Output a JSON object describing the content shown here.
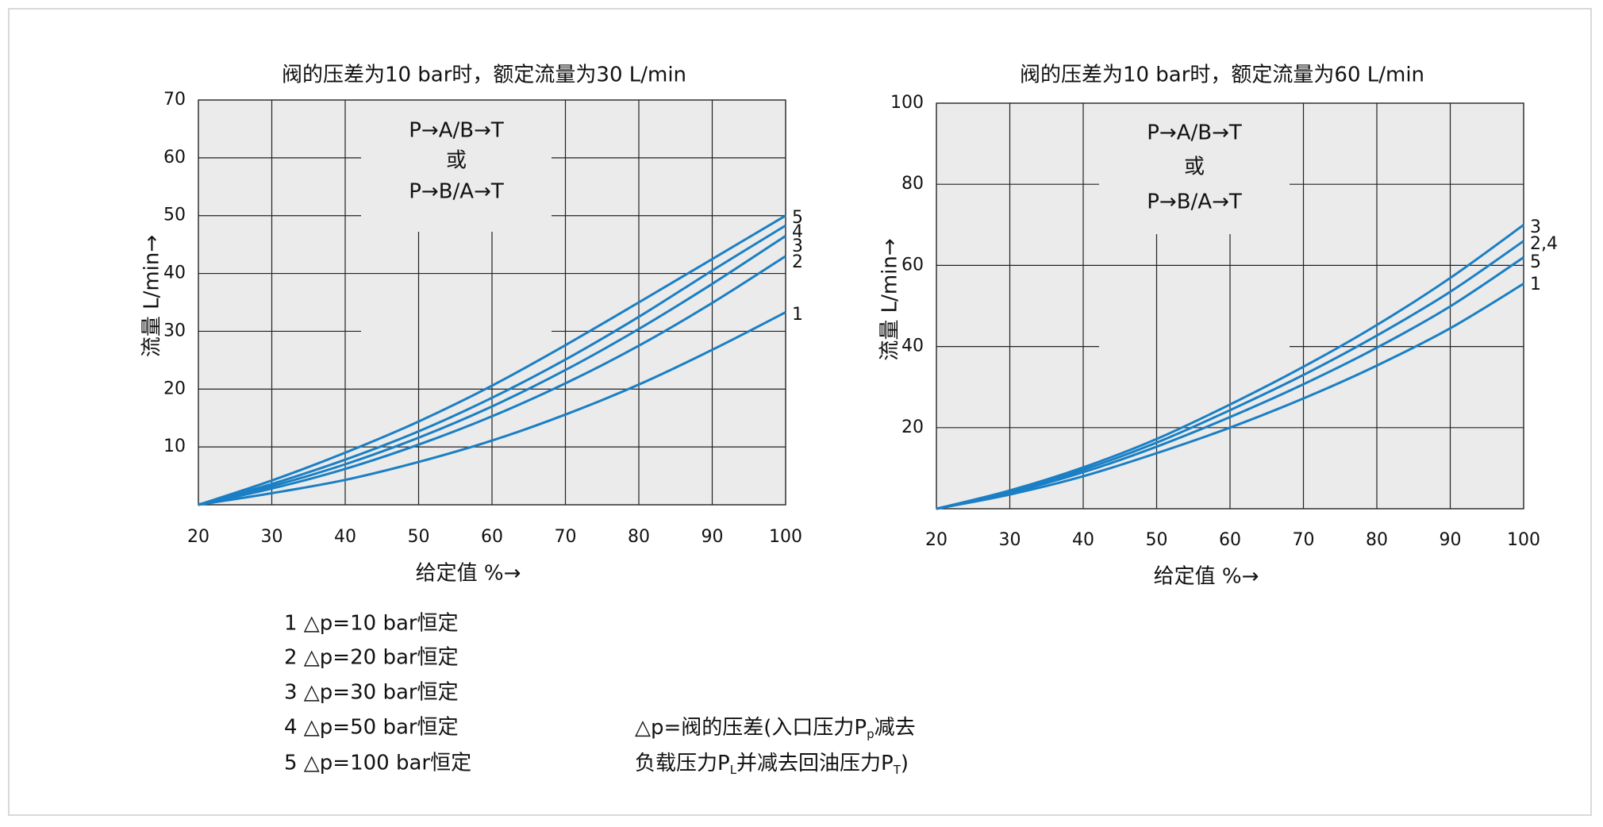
{
  "legend": {
    "items": [
      "1 △p=10 bar恒定",
      "2 △p=20 bar恒定",
      "3 △p=30 bar恒定",
      "4 △p=50 bar恒定",
      "5 △p=100 bar恒定"
    ],
    "note_line1": "△p=阀的压差(入口压力P",
    "note_line1_sub": "p",
    "note_line1_tail": "减去",
    "note_line2_a": "负载压力P",
    "note_line2_sub1": "L",
    "note_line2_b": "并减去回油压力P",
    "note_line2_sub2": "T",
    "note_line2_tail": ")"
  },
  "colors": {
    "curve": "#1a7fc4",
    "plot_bg": "#ebebeb",
    "grid": "#222222"
  },
  "chart_data": [
    {
      "type": "line",
      "title": "阀的压差为10 bar时，额定流量为30 L/min",
      "xlabel": "给定值 %→",
      "ylabel": "流量 L/min→",
      "xlim": [
        20,
        100
      ],
      "ylim": [
        0,
        70
      ],
      "xticks": [
        20,
        30,
        40,
        50,
        60,
        70,
        80,
        90,
        100
      ],
      "yticks": [
        10,
        20,
        30,
        40,
        50,
        60,
        70
      ],
      "box": {
        "line1": "P→A/B→T",
        "line2": "或",
        "line3": "P→B/A→T"
      },
      "x": [
        20,
        30,
        40,
        50,
        60,
        70,
        80,
        90,
        100
      ],
      "series": [
        {
          "name": "1",
          "values": [
            0,
            2,
            4.3,
            7.4,
            11.1,
            15.6,
            20.8,
            26.8,
            33.3
          ]
        },
        {
          "name": "2",
          "values": [
            0,
            2.8,
            6.2,
            10.4,
            15.3,
            21.0,
            27.5,
            34.9,
            43.0
          ]
        },
        {
          "name": "3",
          "values": [
            0,
            3.2,
            7.0,
            11.6,
            17.0,
            23.3,
            30.4,
            38.2,
            46.5
          ]
        },
        {
          "name": "4",
          "values": [
            0,
            3.6,
            7.8,
            12.7,
            18.5,
            25.1,
            32.5,
            40.5,
            48.3
          ]
        },
        {
          "name": "5",
          "values": [
            0,
            4.2,
            9.0,
            14.4,
            20.6,
            27.6,
            35.0,
            42.5,
            50.0
          ]
        }
      ]
    },
    {
      "type": "line",
      "title": "阀的压差为10 bar时，额定流量为60 L/min",
      "xlabel": "给定值 %→",
      "ylabel": "流量 L/min→",
      "xlim": [
        20,
        100
      ],
      "ylim": [
        0,
        100
      ],
      "xticks": [
        20,
        30,
        40,
        50,
        60,
        70,
        80,
        90,
        100
      ],
      "yticks": [
        20,
        40,
        60,
        80,
        100
      ],
      "box": {
        "line1": "P→A/B→T",
        "line2": "或",
        "line3": "P→B/A→T"
      },
      "x": [
        20,
        30,
        40,
        50,
        60,
        70,
        80,
        90,
        100
      ],
      "series": [
        {
          "name": "1",
          "values": [
            0,
            3.5,
            8.0,
            13.7,
            20.0,
            27.2,
            35.3,
            44.5,
            55.5
          ]
        },
        {
          "name": "5",
          "values": [
            0,
            3.9,
            9.0,
            15.3,
            22.6,
            30.7,
            39.7,
            49.9,
            62.0
          ]
        },
        {
          "name": "2,4",
          "values": [
            0,
            4.2,
            9.6,
            16.3,
            24.3,
            33.0,
            42.7,
            53.5,
            66.0
          ]
        },
        {
          "name": "3",
          "values": [
            0,
            4.5,
            10.2,
            17.2,
            25.7,
            35.0,
            45.3,
            56.9,
            70.0
          ]
        }
      ]
    }
  ]
}
